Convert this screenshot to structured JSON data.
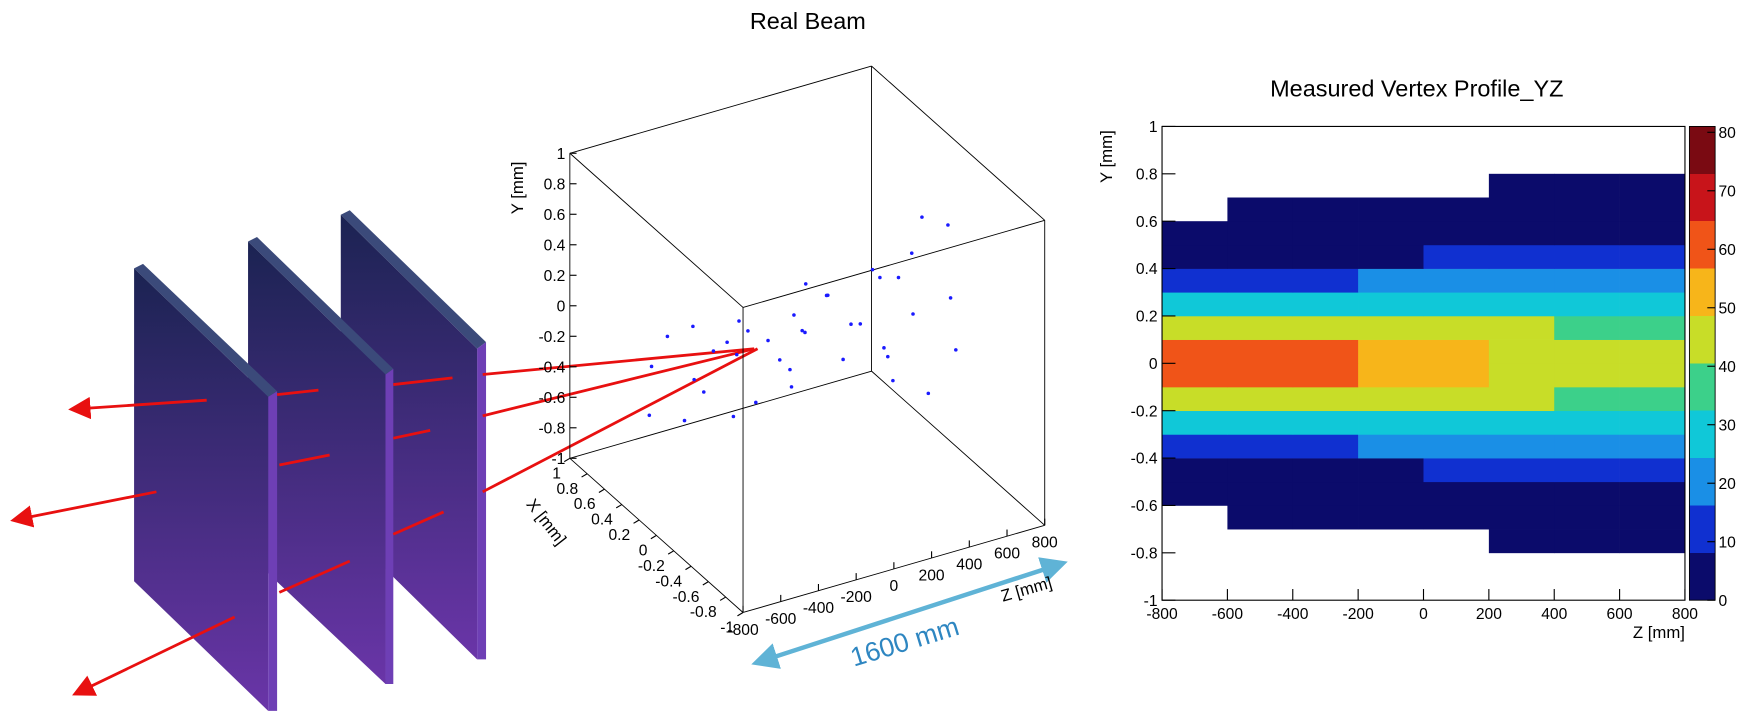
{
  "chart_data": [
    {
      "type": "scatter3d",
      "title": "Real Beam",
      "x_label": "X [mm]",
      "y_label": "Y [mm]",
      "z_label": "Z [mm]",
      "xlim": [
        -1,
        1
      ],
      "ylim": [
        -1,
        1
      ],
      "zlim": [
        -800,
        800
      ],
      "xticks": [
        -1,
        -0.8,
        -0.6,
        -0.4,
        -0.2,
        0,
        0.2,
        0.4,
        0.6,
        0.8,
        1
      ],
      "yticks": [
        -1,
        -0.8,
        -0.6,
        -0.4,
        -0.2,
        0,
        0.2,
        0.4,
        0.6,
        0.8,
        1
      ],
      "zticks": [
        -800,
        -600,
        -400,
        -200,
        0,
        200,
        400,
        600,
        800
      ],
      "color": "#1a1aff",
      "x": [
        0.1,
        -0.15,
        0.2,
        0.0,
        -0.25,
        0.15,
        -0.1,
        0.3,
        -0.2,
        0.05,
        0.25,
        -0.3,
        0.1,
        -0.05,
        0.2,
        -0.15,
        0.35,
        -0.2,
        0.0,
        0.3,
        -0.1,
        0.15,
        -0.35,
        0.05,
        0.25,
        -0.2,
        0.1,
        -0.3,
        0.2,
        0.0,
        0.3,
        -0.3,
        0.2,
        -0.2,
        0.4,
        -0.4,
        0.1,
        -0.1,
        0.45,
        -0.45
      ],
      "y": [
        0.05,
        -0.2,
        0.15,
        -0.05,
        0.3,
        -0.25,
        0.1,
        -0.1,
        0.2,
        -0.35,
        0.0,
        0.25,
        -0.15,
        0.1,
        -0.3,
        0.35,
        -0.05,
        0.15,
        -0.2,
        0.05,
        0.4,
        -0.1,
        0.2,
        -0.3,
        0.1,
        -0.45,
        0.3,
        -0.15,
        0.45,
        0.0,
        -0.4,
        0.45,
        -0.5,
        0.5,
        -0.55,
        0.5,
        -0.5,
        0.55,
        0.0,
        0.1
      ],
      "z": [
        -780,
        -720,
        -650,
        -600,
        -540,
        -480,
        -420,
        -360,
        -300,
        -250,
        -200,
        -150,
        -100,
        -50,
        0,
        40,
        90,
        140,
        190,
        240,
        300,
        350,
        400,
        450,
        500,
        550,
        600,
        650,
        700,
        760,
        -700,
        -500,
        -300,
        -100,
        100,
        300,
        500,
        700,
        -400,
        200
      ],
      "annotations": [
        "1600 mm"
      ]
    },
    {
      "type": "heatmap",
      "title": "Measured Vertex Profile_YZ",
      "x_label": "Z [mm]",
      "y_label": "Y [mm]",
      "xlim": [
        -800,
        800
      ],
      "ylim": [
        -1,
        1
      ],
      "xticks": [
        -800,
        -600,
        -400,
        -200,
        0,
        200,
        400,
        600,
        800
      ],
      "yticks": [
        -1,
        -0.8,
        -0.6,
        -0.4,
        -0.2,
        0,
        0.2,
        0.4,
        0.6,
        0.8,
        1
      ],
      "xbins": [
        -800,
        -600,
        -400,
        -200,
        0,
        200,
        400,
        600,
        800
      ],
      "ybins": [
        -1,
        -0.9,
        -0.8,
        -0.7,
        -0.6,
        -0.5,
        -0.4,
        -0.3,
        -0.2,
        -0.1,
        0,
        0.1,
        0.2,
        0.3,
        0.4,
        0.5,
        0.6,
        0.7,
        0.8,
        0.9,
        1
      ],
      "values": [
        [
          0,
          0,
          0,
          0,
          0,
          0,
          0,
          0
        ],
        [
          0,
          0,
          0,
          0,
          0,
          0,
          0,
          0
        ],
        [
          0,
          0,
          0,
          0,
          0,
          1,
          1,
          1
        ],
        [
          0,
          1,
          1,
          1,
          1,
          2,
          2,
          2
        ],
        [
          1,
          2,
          3,
          3,
          4,
          4,
          5,
          6
        ],
        [
          5,
          6,
          7,
          8,
          9,
          10,
          11,
          11
        ],
        [
          14,
          15,
          16,
          17,
          18,
          18,
          19,
          19
        ],
        [
          29,
          30,
          30,
          30,
          30,
          30,
          30,
          29
        ],
        [
          48,
          47,
          46,
          44,
          43,
          41,
          40,
          39
        ],
        [
          62,
          59,
          57,
          54,
          51,
          48,
          46,
          44
        ],
        [
          62,
          59,
          57,
          54,
          51,
          48,
          46,
          44
        ],
        [
          48,
          47,
          46,
          44,
          43,
          41,
          40,
          39
        ],
        [
          29,
          30,
          30,
          30,
          30,
          30,
          30,
          29
        ],
        [
          14,
          15,
          16,
          17,
          18,
          18,
          19,
          19
        ],
        [
          5,
          6,
          7,
          8,
          9,
          10,
          11,
          11
        ],
        [
          1,
          2,
          3,
          3,
          4,
          4,
          5,
          6
        ],
        [
          0,
          1,
          1,
          1,
          1,
          2,
          2,
          2
        ],
        [
          0,
          0,
          0,
          0,
          0,
          1,
          1,
          1
        ],
        [
          0,
          0,
          0,
          0,
          0,
          0,
          0,
          0
        ],
        [
          0,
          0,
          0,
          0,
          0,
          0,
          0,
          0
        ]
      ],
      "zlim": [
        0,
        81
      ],
      "zticks": [
        0,
        10,
        20,
        30,
        40,
        50,
        60,
        70,
        80
      ],
      "colorscale": [
        "#0b0b6b",
        "#1030d0",
        "#1a8fe6",
        "#10c8d8",
        "#3cd08a",
        "#c8dd28",
        "#f7b51a",
        "#f05418",
        "#c8141a",
        "#7a0a12"
      ]
    }
  ]
}
